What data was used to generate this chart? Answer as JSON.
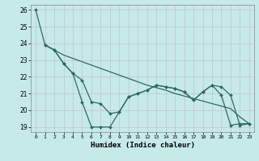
{
  "xlabel": "Humidex (Indice chaleur)",
  "bg_color": "#c5eae8",
  "grid_color": "#b0c8c8",
  "line_color": "#2e6b60",
  "xlim": [
    -0.5,
    23.5
  ],
  "ylim": [
    18.7,
    26.3
  ],
  "xticks": [
    0,
    1,
    2,
    3,
    4,
    5,
    6,
    7,
    8,
    9,
    10,
    11,
    12,
    13,
    14,
    15,
    16,
    17,
    18,
    19,
    20,
    21,
    22,
    23
  ],
  "yticks": [
    19,
    20,
    21,
    22,
    23,
    24,
    25,
    26
  ],
  "line1_x": [
    0,
    1,
    2,
    3,
    4,
    5,
    6,
    7,
    8,
    9,
    10,
    11,
    12,
    13,
    14,
    15,
    16,
    17,
    18,
    19,
    20,
    21,
    22,
    23
  ],
  "line1_y": [
    26.0,
    23.9,
    23.6,
    22.8,
    22.2,
    20.5,
    19.0,
    19.0,
    19.0,
    19.9,
    20.8,
    21.0,
    21.2,
    21.5,
    21.4,
    21.3,
    21.1,
    20.6,
    21.1,
    21.5,
    20.9,
    19.1,
    19.2,
    19.2
  ],
  "line2_x": [
    1,
    2,
    3,
    4,
    5,
    6,
    7,
    8,
    9,
    10,
    11,
    12,
    13,
    14,
    15,
    16,
    17,
    18,
    19,
    20,
    21,
    22,
    23
  ],
  "line2_y": [
    23.9,
    23.6,
    23.3,
    23.1,
    22.9,
    22.7,
    22.5,
    22.3,
    22.1,
    21.9,
    21.7,
    21.5,
    21.35,
    21.2,
    21.0,
    20.85,
    20.7,
    20.55,
    20.4,
    20.25,
    20.1,
    19.6,
    19.2
  ],
  "line3_x": [
    1,
    2,
    3,
    4,
    5,
    6,
    7,
    8,
    9,
    10,
    11,
    12,
    13,
    14,
    15,
    16,
    17,
    18,
    19,
    20,
    21,
    22,
    23
  ],
  "line3_y": [
    23.9,
    23.6,
    22.8,
    22.2,
    21.8,
    20.5,
    20.4,
    19.8,
    19.9,
    20.8,
    21.0,
    21.2,
    21.5,
    21.4,
    21.3,
    21.1,
    20.6,
    21.1,
    21.5,
    21.4,
    20.9,
    19.1,
    19.2
  ]
}
